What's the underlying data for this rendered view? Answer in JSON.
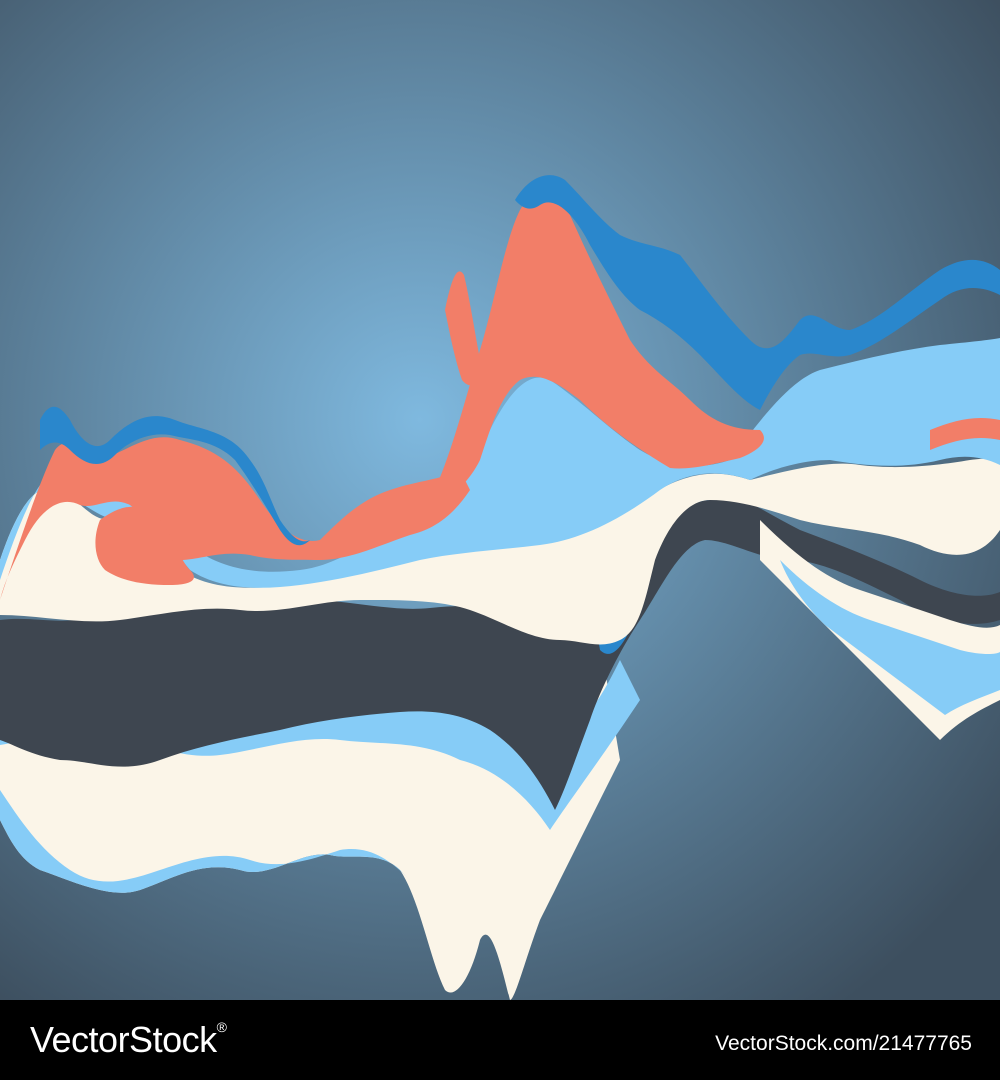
{
  "watermark": {
    "logo_text": "VectorStock",
    "logo_mark": "®",
    "image_id_text": "VectorStock.com/21477765"
  },
  "colors": {
    "background_center": "#7fb9df",
    "background_edge": "#3d4f5f",
    "coral": "#f27e68",
    "royal_blue": "#2a87cc",
    "sky_blue": "#86ccf7",
    "cream": "#fbf5e8",
    "charcoal": "#3e4650",
    "footer": "#000000"
  }
}
